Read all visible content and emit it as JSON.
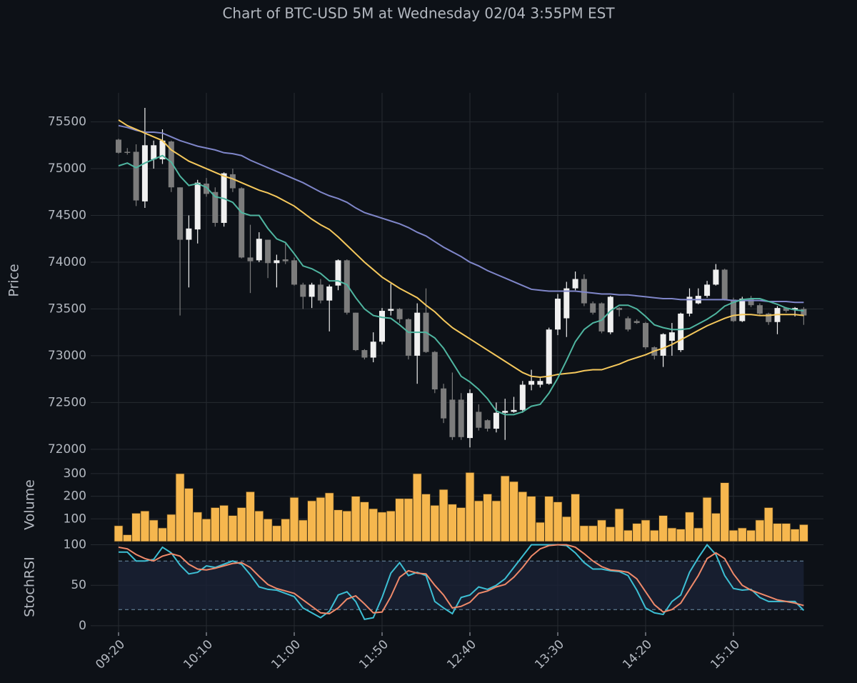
{
  "chart_data": [
    {
      "type": "candlestick",
      "title": "Chart of BTC-USD 5M at Wednesday 02/04 3:55PM EST",
      "ylabel": "Price",
      "ylim": [
        71800,
        75810
      ],
      "yticks": [
        72000,
        72500,
        73000,
        73500,
        74000,
        74500,
        75000,
        75500
      ],
      "grid": true,
      "up_color": "#f0f0f0",
      "down_color": "#7c7c7c",
      "open": [
        75310,
        75180,
        75180,
        74650,
        75100,
        75100,
        75290,
        74800,
        74240,
        74350,
        74840,
        74750,
        74420,
        74940,
        74790,
        74050,
        74020,
        74240,
        73990,
        74030,
        74020,
        73760,
        73630,
        73760,
        73590,
        73750,
        74020,
        73460,
        73060,
        72980,
        73150,
        73480,
        73500,
        73390,
        73000,
        73460,
        73040,
        72650,
        72530,
        72530,
        72120,
        72400,
        72310,
        72220,
        72390,
        72400,
        72420,
        72690,
        72690,
        72700,
        73280,
        73400,
        73720,
        73820,
        73560,
        73560,
        73250,
        73510,
        73400,
        73370,
        73350,
        73090,
        73000,
        73160,
        73060,
        73450,
        73560,
        73640,
        73760,
        73920,
        73600,
        73370,
        73610,
        73540,
        73450,
        73360,
        73510,
        73490,
        73500
      ],
      "high": [
        75320,
        75220,
        75260,
        75650,
        75300,
        75420,
        75300,
        74800,
        74500,
        74880,
        74900,
        74800,
        74960,
        75000,
        74800,
        74400,
        74320,
        74240,
        74080,
        74200,
        74050,
        73780,
        73780,
        73820,
        73760,
        74030,
        74030,
        73460,
        73070,
        73250,
        73510,
        73770,
        73510,
        73400,
        73560,
        73720,
        73050,
        72700,
        72820,
        72600,
        72640,
        72480,
        72320,
        72500,
        72540,
        72560,
        72730,
        72850,
        72760,
        73300,
        73660,
        73790,
        73900,
        73870,
        73580,
        73570,
        73640,
        73520,
        73420,
        73390,
        73360,
        73100,
        73240,
        73350,
        73460,
        73720,
        73720,
        73800,
        73980,
        73930,
        73620,
        73630,
        73640,
        73560,
        73460,
        73530,
        73520,
        73520,
        73520
      ],
      "low": [
        75160,
        75150,
        74600,
        74580,
        75000,
        75050,
        74750,
        73430,
        73730,
        74200,
        74700,
        74380,
        74380,
        74750,
        74040,
        73670,
        74000,
        73830,
        73730,
        73980,
        73750,
        73500,
        73510,
        73560,
        73260,
        73700,
        73440,
        73050,
        72960,
        72930,
        73120,
        73430,
        73350,
        72960,
        72700,
        73030,
        72600,
        72280,
        72100,
        72100,
        72020,
        72200,
        72190,
        72180,
        72100,
        72390,
        72390,
        72630,
        72660,
        72690,
        73220,
        73200,
        73700,
        73530,
        73440,
        73240,
        73230,
        73420,
        73260,
        73340,
        73070,
        72960,
        72880,
        73000,
        73040,
        73420,
        73550,
        73620,
        73750,
        73590,
        73360,
        73360,
        73520,
        73440,
        73330,
        73230,
        73460,
        73420,
        73330
      ],
      "close": [
        75170,
        75170,
        74660,
        75250,
        75250,
        75300,
        74800,
        74240,
        74360,
        74850,
        74730,
        74420,
        74950,
        74790,
        74050,
        74010,
        74250,
        73990,
        74020,
        74010,
        73760,
        73630,
        73760,
        73590,
        73740,
        74020,
        73460,
        73060,
        72980,
        73150,
        73480,
        73500,
        73390,
        73000,
        73460,
        73040,
        72640,
        72330,
        72130,
        72130,
        72600,
        72230,
        72220,
        72390,
        72410,
        72420,
        72690,
        72730,
        72730,
        73280,
        73610,
        73720,
        73820,
        73560,
        73460,
        73260,
        73630,
        73490,
        73280,
        73350,
        73090,
        73000,
        73230,
        73250,
        73450,
        73630,
        73640,
        73760,
        73920,
        73600,
        73370,
        73610,
        73540,
        73450,
        73360,
        73510,
        73480,
        73510,
        73430
      ],
      "series": [
        {
          "color": "#7f86c9",
          "values": [
            75460,
            75440,
            75410,
            75390,
            75390,
            75380,
            75340,
            75300,
            75270,
            75240,
            75220,
            75200,
            75170,
            75160,
            75140,
            75090,
            75050,
            75010,
            74970,
            74930,
            74890,
            74850,
            74800,
            74750,
            74710,
            74680,
            74640,
            74580,
            74530,
            74500,
            74470,
            74440,
            74410,
            74370,
            74320,
            74280,
            74220,
            74160,
            74110,
            74060,
            74000,
            73960,
            73910,
            73870,
            73830,
            73790,
            73750,
            73710,
            73700,
            73690,
            73690,
            73690,
            73690,
            73680,
            73670,
            73660,
            73660,
            73650,
            73650,
            73640,
            73630,
            73620,
            73610,
            73610,
            73600,
            73600,
            73600,
            73600,
            73600,
            73600,
            73590,
            73590,
            73590,
            73590,
            73580,
            73580,
            73580,
            73570,
            73570
          ]
        },
        {
          "color": "#f5c85c",
          "values": [
            75520,
            75460,
            75420,
            75380,
            75340,
            75300,
            75200,
            75140,
            75080,
            75040,
            75000,
            74960,
            74920,
            74890,
            74850,
            74810,
            74770,
            74740,
            74700,
            74650,
            74600,
            74530,
            74460,
            74400,
            74350,
            74270,
            74180,
            74090,
            74000,
            73920,
            73840,
            73780,
            73720,
            73670,
            73620,
            73540,
            73470,
            73380,
            73300,
            73240,
            73180,
            73120,
            73060,
            73000,
            72940,
            72880,
            72820,
            72780,
            72770,
            72780,
            72800,
            72810,
            72820,
            72840,
            72850,
            72850,
            72880,
            72910,
            72950,
            72980,
            73010,
            73050,
            73080,
            73120,
            73170,
            73220,
            73270,
            73320,
            73360,
            73400,
            73430,
            73440,
            73440,
            73430,
            73430,
            73440,
            73440,
            73440,
            73430
          ]
        },
        {
          "color": "#4fb5a0",
          "values": [
            75030,
            75060,
            75010,
            75060,
            75100,
            75140,
            75070,
            74920,
            74820,
            74840,
            74800,
            74700,
            74680,
            74640,
            74530,
            74500,
            74500,
            74360,
            74250,
            74210,
            74090,
            73960,
            73930,
            73880,
            73800,
            73800,
            73760,
            73620,
            73500,
            73430,
            73410,
            73400,
            73330,
            73250,
            73250,
            73250,
            73190,
            73080,
            72930,
            72780,
            72720,
            72640,
            72540,
            72410,
            72370,
            72370,
            72400,
            72460,
            72480,
            72600,
            72760,
            72950,
            73150,
            73280,
            73350,
            73380,
            73480,
            73540,
            73540,
            73500,
            73420,
            73330,
            73300,
            73280,
            73280,
            73290,
            73340,
            73390,
            73450,
            73530,
            73570,
            73600,
            73610,
            73610,
            73580,
            73550,
            73510,
            73490,
            73480
          ]
        }
      ]
    },
    {
      "type": "bar",
      "ylabel": "Volume",
      "ylim": [
        0,
        325
      ],
      "yticks": [
        100,
        200,
        300
      ],
      "grid": true,
      "color": "#f6b74e",
      "values": [
        70,
        30,
        125,
        135,
        95,
        60,
        120,
        300,
        235,
        130,
        100,
        150,
        160,
        115,
        150,
        220,
        135,
        100,
        70,
        100,
        195,
        95,
        180,
        195,
        215,
        140,
        135,
        200,
        175,
        145,
        130,
        135,
        190,
        190,
        300,
        210,
        160,
        230,
        165,
        150,
        305,
        180,
        210,
        180,
        290,
        265,
        220,
        200,
        85,
        200,
        175,
        110,
        210,
        70,
        70,
        95,
        65,
        145,
        50,
        80,
        95,
        50,
        115,
        60,
        55,
        130,
        60,
        195,
        125,
        260,
        50,
        60,
        50,
        95,
        150,
        80,
        80,
        55,
        75
      ]
    },
    {
      "type": "line",
      "ylabel": "StochRSI",
      "ylim": [
        -8,
        104
      ],
      "yticks": [
        0,
        50,
        100
      ],
      "grid": true,
      "bands": [
        20,
        80
      ],
      "band_color": "#6f8fa8",
      "categories": [
        "09:20",
        null,
        null,
        null,
        null,
        null,
        null,
        null,
        null,
        null,
        "10:10",
        null,
        null,
        null,
        null,
        null,
        null,
        null,
        null,
        null,
        "11:00",
        null,
        null,
        null,
        null,
        null,
        null,
        null,
        null,
        null,
        "11:50",
        null,
        null,
        null,
        null,
        null,
        null,
        null,
        null,
        null,
        "12:40",
        null,
        null,
        null,
        null,
        null,
        null,
        null,
        null,
        null,
        "13:30",
        null,
        null,
        null,
        null,
        null,
        null,
        null,
        null,
        null,
        "14:20",
        null,
        null,
        null,
        null,
        null,
        null,
        null,
        null,
        null,
        "15:10",
        null,
        null,
        null,
        null,
        null,
        null,
        null,
        null
      ],
      "series": [
        {
          "color": "#3dbfd4",
          "values": [
            91,
            91,
            80,
            80,
            82,
            97,
            90,
            75,
            64,
            66,
            74,
            72,
            76,
            80,
            76,
            63,
            48,
            45,
            44,
            40,
            36,
            22,
            16,
            10,
            18,
            38,
            42,
            30,
            8,
            10,
            35,
            65,
            78,
            62,
            66,
            62,
            30,
            22,
            15,
            35,
            38,
            48,
            45,
            50,
            58,
            72,
            86,
            100,
            100,
            100,
            100,
            99,
            90,
            78,
            70,
            70,
            68,
            67,
            62,
            44,
            22,
            16,
            14,
            30,
            38,
            66,
            84,
            100,
            88,
            62,
            46,
            44,
            45,
            35,
            30,
            30,
            30,
            30,
            19
          ]
        },
        {
          "color": "#f08a6a",
          "values": [
            97,
            95,
            88,
            83,
            80,
            86,
            89,
            86,
            76,
            70,
            69,
            71,
            74,
            77,
            78,
            72,
            61,
            51,
            46,
            43,
            40,
            32,
            24,
            16,
            15,
            22,
            33,
            37,
            27,
            16,
            17,
            36,
            60,
            68,
            65,
            64,
            50,
            38,
            22,
            24,
            29,
            40,
            43,
            48,
            51,
            60,
            72,
            86,
            95,
            99,
            100,
            100,
            97,
            89,
            80,
            73,
            69,
            68,
            66,
            58,
            42,
            26,
            17,
            20,
            28,
            45,
            62,
            83,
            90,
            83,
            64,
            50,
            44,
            40,
            36,
            32,
            30,
            28,
            25
          ]
        }
      ]
    }
  ]
}
